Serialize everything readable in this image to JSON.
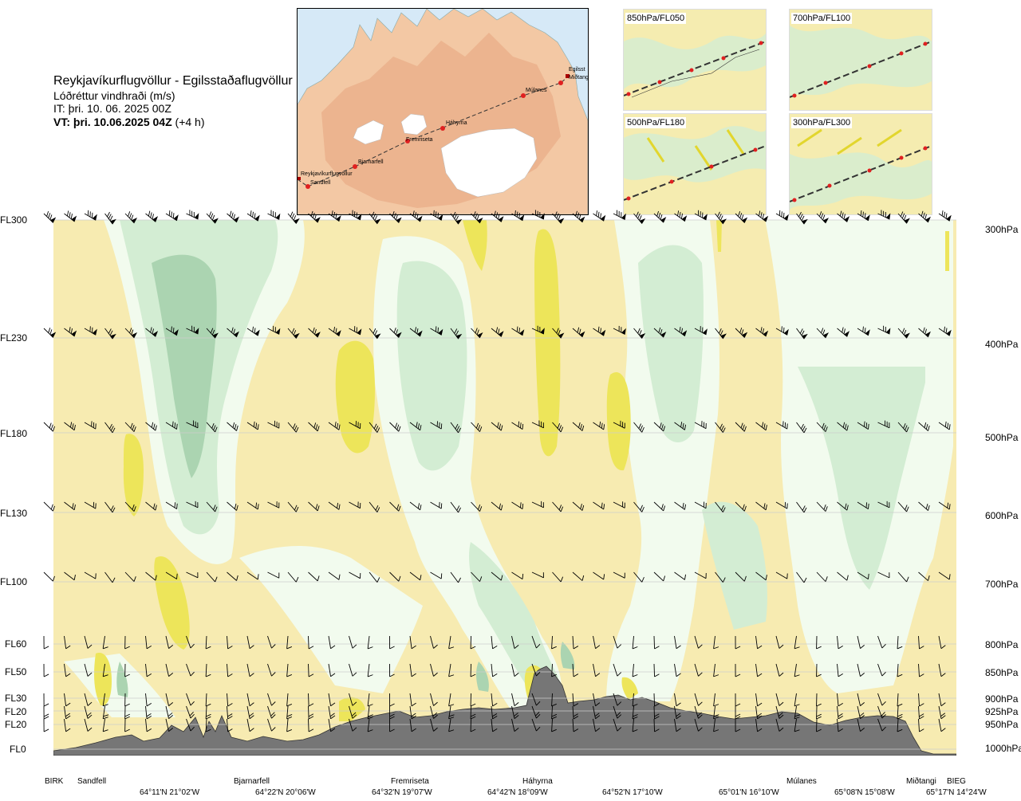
{
  "header": {
    "title": "Reykjavíkurflugvöllur - Egilsstaðaflugvöllur",
    "subtitle": "Lóðréttur vindhraði (m/s)",
    "issue_time": "IT: þri. 10. 06. 2025 00Z",
    "valid_time_bold": "VT: þri. 10.06.2025 04Z",
    "valid_offset": " (+4 h)"
  },
  "map": {
    "stations": [
      "Reykjavíkurflugvöllur",
      "Sandfell",
      "Bjarnarfell",
      "Fremriseta",
      "Háhyrna",
      "Múlanes",
      "Egilsst",
      "Miðtangi"
    ],
    "colors": {
      "sea": "#d6e9f7",
      "land": "#f3c8a4",
      "ridge": "#e6a47d",
      "ice": "#ffffff",
      "route": "#333333",
      "station": "#e02020"
    }
  },
  "thumbnails": [
    {
      "label": "850hPa/FL050"
    },
    {
      "label": "700hPa/FL100"
    },
    {
      "label": "500hPa/FL180"
    },
    {
      "label": "300hPa/FL300"
    }
  ],
  "left_levels": [
    "FL300",
    "FL230",
    "FL180",
    "FL130",
    "FL100",
    "FL60",
    "FL50",
    "FL30",
    "FL20",
    "FL20",
    "FL0"
  ],
  "right_levels": [
    "300hPa",
    "400hPa",
    "500hPa",
    "600hPa",
    "700hPa",
    "800hPa",
    "850hPa",
    "900hPa",
    "925hPa",
    "950hPa",
    "1000hPa"
  ],
  "places": [
    "BIRK",
    "Sandfell",
    "Bjarnarfell",
    "Fremriseta",
    "Háhyrna",
    "Múlanes",
    "Miðtangi",
    "BIEG"
  ],
  "coords": [
    "64°11'N 21°02'W",
    "64°22'N 20°06'W",
    "64°32'N 19°07'W",
    "64°42'N 18°09'W",
    "64°52'N 17°10'W",
    "65°01'N 16°10'W",
    "65°08'N 15°08'W",
    "65°17'N 14°24'W"
  ],
  "chart_data": {
    "type": "heatmap",
    "title": "Lóðréttur vindhraði (m/s)",
    "x_positions_labels": [
      "BIRK",
      "Sandfell",
      "Bjarnarfell",
      "Fremriseta",
      "Háhyrna",
      "Múlanes",
      "Miðtangi",
      "BIEG"
    ],
    "y_levels_hPa": [
      300,
      400,
      500,
      600,
      700,
      800,
      850,
      900,
      925,
      950,
      1000
    ],
    "y_levels_FL": [
      "FL300",
      "FL230",
      "FL180",
      "FL130",
      "FL100",
      "FL60",
      "FL50",
      "FL30",
      "FL20",
      "FL20",
      "FL0"
    ],
    "color_scale": {
      "background": "#f7ebb1",
      "weak_up": "#ffffd4",
      "moderate_up": "#ede55a",
      "strong_up": "#e2d62e",
      "weak_down": "#f2fbee",
      "moderate_down": "#d3edd3",
      "strong_down": "#abd4b1",
      "terrain": "#767676"
    },
    "terrain_profile": [
      [
        0,
        0
      ],
      [
        0.07,
        0.06
      ],
      [
        0.13,
        0.13
      ],
      [
        0.17,
        0.24
      ],
      [
        0.22,
        0.2
      ],
      [
        0.3,
        0.18
      ],
      [
        0.38,
        0.34
      ],
      [
        0.44,
        0.49
      ],
      [
        0.5,
        0.53
      ],
      [
        0.56,
        0.6
      ],
      [
        0.6,
        0.7
      ],
      [
        0.65,
        0.88
      ],
      [
        0.69,
        0.64
      ],
      [
        0.74,
        0.7
      ],
      [
        0.78,
        0.6
      ],
      [
        0.83,
        0.52
      ],
      [
        0.87,
        0.47
      ],
      [
        0.91,
        0.42
      ],
      [
        0.95,
        0.45
      ],
      [
        0.98,
        0.2
      ],
      [
        1,
        0.04
      ]
    ]
  }
}
